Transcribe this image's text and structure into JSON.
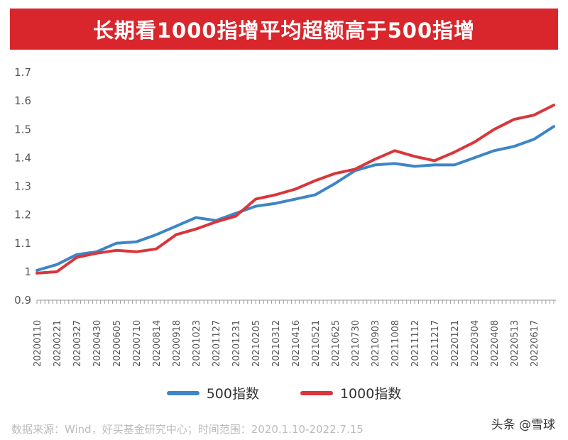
{
  "chart_data": {
    "type": "line",
    "title": "长期看1000指增平均超额高于500指增",
    "ylim": [
      0.9,
      1.7
    ],
    "yticks": [
      "0.9",
      "1",
      "1.1",
      "1.2",
      "1.3",
      "1.4",
      "1.5",
      "1.6",
      "1.7"
    ],
    "grid": false,
    "legend_position": "bottom",
    "x_tick_labels": [
      "20200110",
      "20200221",
      "20200327",
      "20200430",
      "20200605",
      "20200710",
      "20200814",
      "20200918",
      "20201023",
      "20201127",
      "20201231",
      "20210205",
      "20210312",
      "20210416",
      "20210521",
      "20210625",
      "20210730",
      "20210903",
      "20211008",
      "20211112",
      "20211217",
      "20220121",
      "20220304",
      "20220408",
      "20220513",
      "20220617"
    ],
    "x": [
      "20200110",
      "20200221",
      "20200327",
      "20200430",
      "20200605",
      "20200710",
      "20200814",
      "20200918",
      "20201023",
      "20201127",
      "20201231",
      "20210205",
      "20210312",
      "20210416",
      "20210521",
      "20210625",
      "20210730",
      "20210903",
      "20211008",
      "20211112",
      "20211217",
      "20220121",
      "20220304",
      "20220408",
      "20220513",
      "20220617",
      "20220715"
    ],
    "series": [
      {
        "name": "500指数",
        "color": "#3d85c6",
        "values": [
          1.005,
          1.025,
          1.06,
          1.07,
          1.1,
          1.105,
          1.13,
          1.16,
          1.19,
          1.18,
          1.205,
          1.23,
          1.24,
          1.255,
          1.27,
          1.31,
          1.355,
          1.375,
          1.38,
          1.37,
          1.375,
          1.375,
          1.4,
          1.425,
          1.44,
          1.465,
          1.51
        ]
      },
      {
        "name": "1000指数",
        "color": "#d9363b",
        "values": [
          0.995,
          1.0,
          1.05,
          1.065,
          1.075,
          1.07,
          1.08,
          1.13,
          1.15,
          1.175,
          1.195,
          1.255,
          1.27,
          1.29,
          1.32,
          1.345,
          1.36,
          1.395,
          1.425,
          1.405,
          1.39,
          1.42,
          1.455,
          1.5,
          1.535,
          1.55,
          1.585
        ]
      }
    ]
  },
  "footer": {
    "source": "数据来源：Wind，好买基金研究中心；时间范围：2020.1.10-2022.7.15",
    "watermark": "头条 @雪球"
  }
}
